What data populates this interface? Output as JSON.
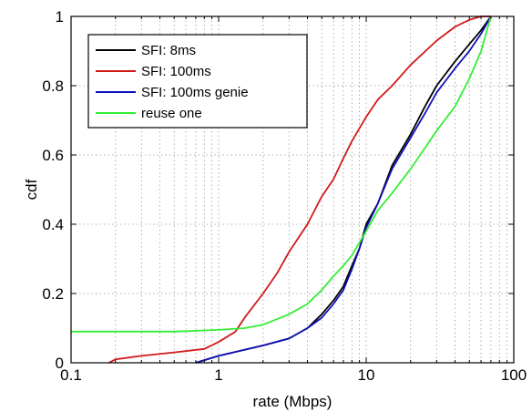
{
  "chart_data": {
    "type": "line",
    "xlabel": "rate (Mbps)",
    "ylabel": "cdf",
    "x_scale": "log",
    "xlim": [
      0.1,
      100
    ],
    "ylim": [
      0,
      1
    ],
    "x_ticks": [
      0.1,
      1,
      10,
      100
    ],
    "x_tick_labels": [
      "0.1",
      "1",
      "10",
      "100"
    ],
    "y_ticks": [
      0,
      0.2,
      0.4,
      0.6,
      0.8,
      1
    ],
    "y_tick_labels": [
      "0",
      "0.2",
      "0.4",
      "0.6",
      "0.8",
      "1"
    ],
    "grid": true,
    "legend_position": "top-left",
    "series": [
      {
        "name": "SFI: 8ms",
        "color": "#000000",
        "x": [
          0.7,
          1.0,
          2.0,
          3.0,
          4.0,
          5.0,
          6.0,
          7.0,
          8.0,
          9.0,
          10.0,
          12.0,
          15.0,
          20.0,
          25.0,
          30.0,
          40.0,
          50.0,
          60.0,
          70.0
        ],
        "y": [
          0.0,
          0.02,
          0.05,
          0.07,
          0.1,
          0.14,
          0.18,
          0.22,
          0.28,
          0.33,
          0.4,
          0.46,
          0.57,
          0.66,
          0.74,
          0.8,
          0.87,
          0.92,
          0.96,
          1.0
        ]
      },
      {
        "name": "SFI: 100ms",
        "color": "#d11a1a",
        "x": [
          0.18,
          0.2,
          0.3,
          0.5,
          0.8,
          1.0,
          1.3,
          1.5,
          2.0,
          2.5,
          3.0,
          4.0,
          5.0,
          6.0,
          7.0,
          8.0,
          10.0,
          12.0,
          15.0,
          20.0,
          30.0,
          40.0,
          50.0,
          60.0,
          70.0
        ],
        "y": [
          0.0,
          0.01,
          0.02,
          0.03,
          0.04,
          0.06,
          0.09,
          0.13,
          0.2,
          0.26,
          0.32,
          0.4,
          0.48,
          0.53,
          0.59,
          0.64,
          0.71,
          0.76,
          0.8,
          0.86,
          0.93,
          0.97,
          0.99,
          1.0,
          1.0
        ]
      },
      {
        "name": "SFI: 100ms genie",
        "color": "#1010b8",
        "x": [
          0.7,
          1.0,
          2.0,
          3.0,
          4.0,
          5.0,
          6.0,
          7.0,
          8.0,
          9.0,
          10.0,
          12.0,
          15.0,
          20.0,
          25.0,
          30.0,
          40.0,
          50.0,
          60.0,
          70.0
        ],
        "y": [
          0.0,
          0.02,
          0.05,
          0.07,
          0.1,
          0.13,
          0.17,
          0.21,
          0.27,
          0.33,
          0.39,
          0.46,
          0.56,
          0.65,
          0.72,
          0.78,
          0.85,
          0.9,
          0.95,
          1.0
        ]
      },
      {
        "name": "reuse one",
        "color": "#33ee33",
        "x": [
          0.1,
          0.5,
          1.0,
          1.5,
          2.0,
          3.0,
          4.0,
          5.0,
          6.0,
          7.0,
          8.0,
          10.0,
          12.0,
          15.0,
          20.0,
          25.0,
          30.0,
          40.0,
          50.0,
          60.0,
          70.0
        ],
        "y": [
          0.09,
          0.09,
          0.095,
          0.1,
          0.11,
          0.14,
          0.17,
          0.21,
          0.25,
          0.28,
          0.31,
          0.38,
          0.44,
          0.49,
          0.56,
          0.62,
          0.67,
          0.74,
          0.82,
          0.9,
          1.0
        ]
      }
    ]
  }
}
